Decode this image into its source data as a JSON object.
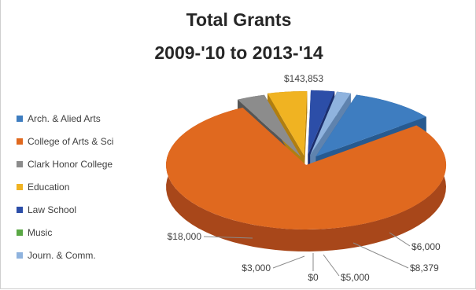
{
  "chart_data": {
    "type": "pie",
    "title_line1": "Total Grants",
    "title_line2": "2009-'10 to 2013-'14",
    "series": [
      {
        "name": "Arch. & Alied Arts",
        "value": 18000,
        "label": "$18,000",
        "color": "#3e7dc0",
        "dark": "#275a90"
      },
      {
        "name": "College of Arts & Sci",
        "value": 143853,
        "label": "$143,853",
        "color": "#e0691f",
        "dark": "#a8471a"
      },
      {
        "name": "Clark Honor College",
        "value": 6000,
        "label": "$6,000",
        "color": "#8c8c8c",
        "dark": "#555555"
      },
      {
        "name": "Education",
        "value": 8379,
        "label": "$8,379",
        "color": "#f0b322",
        "dark": "#b07e10"
      },
      {
        "name": "Law School",
        "value": 5000,
        "label": "$5,000",
        "color": "#2c4ea8",
        "dark": "#1c2f6e"
      },
      {
        "name": "Music",
        "value": 0,
        "label": "$0",
        "color": "#5aa845",
        "dark": "#3a7a2a"
      },
      {
        "name": "Journ. & Comm.",
        "value": 3000,
        "label": "$3,000",
        "color": "#8fb3de",
        "dark": "#5f83ae"
      }
    ],
    "legend_position": "left"
  }
}
